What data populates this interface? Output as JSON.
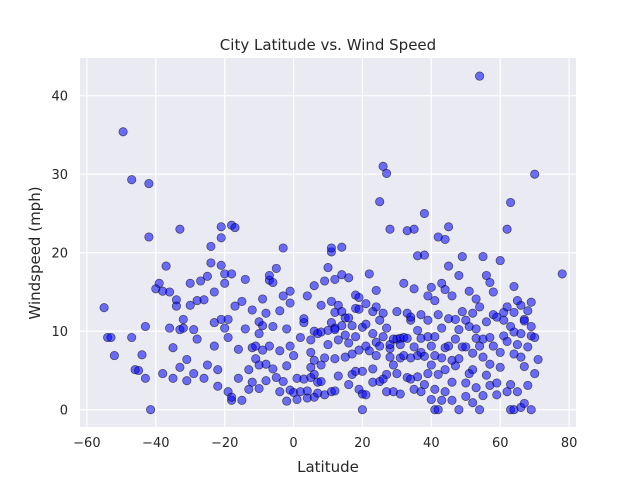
{
  "chart_data": {
    "type": "scatter",
    "title": "City Latitude vs. Wind Speed",
    "xlabel": "Latitude",
    "ylabel": "Windspeed (mph)",
    "xlim": [
      -62,
      82
    ],
    "ylim": [
      -2.2,
      44.8
    ],
    "xticks": [
      -60,
      -40,
      -20,
      0,
      20,
      40,
      60,
      80
    ],
    "yticks": [
      0,
      10,
      20,
      30,
      40
    ],
    "grid": true,
    "background": "#eaeaf2",
    "point_color": "#0000ff",
    "point_edge": "#000000",
    "points": [
      [
        -55,
        13
      ],
      [
        -54,
        9.2
      ],
      [
        -53,
        9.2
      ],
      [
        -52,
        6.9
      ],
      [
        -49.5,
        35.4
      ],
      [
        -47,
        29.3
      ],
      [
        -47,
        9.2
      ],
      [
        -46,
        5.1
      ],
      [
        -45,
        5
      ],
      [
        -44,
        7
      ],
      [
        -43,
        4
      ],
      [
        -43,
        10.6
      ],
      [
        -42,
        28.8
      ],
      [
        -42,
        22
      ],
      [
        -41.5,
        0
      ],
      [
        -40,
        15.4
      ],
      [
        -39,
        16.1
      ],
      [
        -38,
        4.6
      ],
      [
        -38,
        15.1
      ],
      [
        -37,
        18.3
      ],
      [
        -36,
        10.4
      ],
      [
        -36,
        15
      ],
      [
        -35,
        7.9
      ],
      [
        -35,
        4
      ],
      [
        -34,
        14
      ],
      [
        -34,
        13.2
      ],
      [
        -33,
        5.4
      ],
      [
        -33,
        23
      ],
      [
        -33,
        10.2
      ],
      [
        -32,
        11.5
      ],
      [
        -32,
        10.4
      ],
      [
        -31,
        3.7
      ],
      [
        -31,
        6.4
      ],
      [
        -30,
        16.1
      ],
      [
        -30,
        13.3
      ],
      [
        -29,
        4.6
      ],
      [
        -29,
        10.2
      ],
      [
        -28,
        13.9
      ],
      [
        -28,
        9
      ],
      [
        -27,
        16.4
      ],
      [
        -26,
        14
      ],
      [
        -26,
        4
      ],
      [
        -25,
        17
      ],
      [
        -25,
        5.7
      ],
      [
        -24,
        20.8
      ],
      [
        -24,
        18.7
      ],
      [
        -23,
        11.1
      ],
      [
        -23,
        15
      ],
      [
        -23,
        8.1
      ],
      [
        -22,
        3
      ],
      [
        -22,
        5.1
      ],
      [
        -21,
        21.9
      ],
      [
        -21,
        23.3
      ],
      [
        -21,
        18.4
      ],
      [
        -21,
        11.5
      ],
      [
        -20,
        10.4
      ],
      [
        -20,
        17.3
      ],
      [
        -20,
        16.1
      ],
      [
        -19,
        2.3
      ],
      [
        -19,
        9.2
      ],
      [
        -19,
        11.5
      ],
      [
        -18,
        1.2
      ],
      [
        -18,
        1.6
      ],
      [
        -18,
        23.5
      ],
      [
        -18,
        17.3
      ],
      [
        -17,
        23.2
      ],
      [
        -17,
        13.2
      ],
      [
        -16,
        4
      ],
      [
        -16,
        7.7
      ],
      [
        -15,
        13.8
      ],
      [
        -15,
        1.2
      ],
      [
        -14,
        10.3
      ],
      [
        -14,
        16.6
      ],
      [
        -13,
        5.1
      ],
      [
        -13,
        2.6
      ],
      [
        -12,
        3.5
      ],
      [
        -12,
        7.9
      ],
      [
        -12,
        12.7
      ],
      [
        -11,
        8.1
      ],
      [
        -11,
        6.5
      ],
      [
        -10,
        11.2
      ],
      [
        -10,
        5.7
      ],
      [
        -10,
        9.7
      ],
      [
        -10,
        2.7
      ],
      [
        -9,
        7.6
      ],
      [
        -9,
        14.1
      ],
      [
        -9,
        10.7
      ],
      [
        -8,
        3.7
      ],
      [
        -8,
        5.8
      ],
      [
        -8,
        12.3
      ],
      [
        -7,
        16.5
      ],
      [
        -7,
        17.1
      ],
      [
        -7,
        8.1
      ],
      [
        -6,
        5.2
      ],
      [
        -6,
        16.2
      ],
      [
        -6,
        10.6
      ],
      [
        -5,
        4.1
      ],
      [
        -5,
        18
      ],
      [
        -4,
        2.3
      ],
      [
        -4,
        12.6
      ],
      [
        -4,
        7.5
      ],
      [
        -3,
        20.6
      ],
      [
        -3,
        14.5
      ],
      [
        -3,
        3.6
      ],
      [
        -2,
        5.6
      ],
      [
        -2,
        1.1
      ],
      [
        -2,
        10.3
      ],
      [
        -1,
        2.5
      ],
      [
        -1,
        15.1
      ],
      [
        -1,
        13.6
      ],
      [
        -1,
        8.1
      ],
      [
        0,
        2.2
      ],
      [
        0,
        6.9
      ],
      [
        1,
        1.3
      ],
      [
        1,
        4
      ],
      [
        2,
        2.3
      ],
      [
        2,
        9.2
      ],
      [
        3,
        3.9
      ],
      [
        3,
        11.1
      ],
      [
        3,
        11.6
      ],
      [
        4,
        1.5
      ],
      [
        4,
        2.4
      ],
      [
        4,
        14.5
      ],
      [
        5,
        5.4
      ],
      [
        5,
        4.1
      ],
      [
        5,
        8.9
      ],
      [
        5,
        7.3
      ],
      [
        6,
        6.3
      ],
      [
        6,
        1.6
      ],
      [
        6,
        4.5
      ],
      [
        6,
        15.8
      ],
      [
        6,
        10
      ],
      [
        7,
        3.5
      ],
      [
        7,
        2.1
      ],
      [
        7,
        9.7
      ],
      [
        8,
        13.3
      ],
      [
        8,
        5.7
      ],
      [
        8,
        3.6
      ],
      [
        8,
        9.9
      ],
      [
        9,
        6.6
      ],
      [
        9,
        16.4
      ],
      [
        9,
        1.9
      ],
      [
        10,
        8.3
      ],
      [
        10,
        18.1
      ],
      [
        10,
        10.1
      ],
      [
        11,
        2.3
      ],
      [
        11,
        11.1
      ],
      [
        11,
        20.1
      ],
      [
        11,
        20.6
      ],
      [
        11,
        13.8
      ],
      [
        12,
        2.4
      ],
      [
        12,
        6.5
      ],
      [
        12,
        10.4
      ],
      [
        12,
        10.2
      ],
      [
        12,
        12.4
      ],
      [
        12,
        16.6
      ],
      [
        13,
        8.9
      ],
      [
        13,
        13.3
      ],
      [
        13,
        4.3
      ],
      [
        14,
        10.7
      ],
      [
        14,
        20.7
      ],
      [
        14,
        17.2
      ],
      [
        14,
        12.5
      ],
      [
        15,
        11.7
      ],
      [
        15,
        9.5
      ],
      [
        15,
        6.7
      ],
      [
        16,
        11.7
      ],
      [
        16,
        16.8
      ],
      [
        16,
        8.5
      ],
      [
        16,
        3.2
      ],
      [
        17,
        10.7
      ],
      [
        17,
        4.5
      ],
      [
        17,
        7.1
      ],
      [
        18,
        12.9
      ],
      [
        18,
        4.9
      ],
      [
        18,
        9.3
      ],
      [
        18,
        14.6
      ],
      [
        19,
        2.6
      ],
      [
        19,
        7.6
      ],
      [
        19,
        12.8
      ],
      [
        19,
        14.3
      ],
      [
        20,
        4.9
      ],
      [
        20,
        10.5
      ],
      [
        20,
        2
      ],
      [
        20,
        0
      ],
      [
        21,
        1.9
      ],
      [
        21,
        10.9
      ],
      [
        21,
        13.5
      ],
      [
        21,
        8.1
      ],
      [
        22,
        17.3
      ],
      [
        22,
        7.5
      ],
      [
        23,
        5.2
      ],
      [
        23,
        9.7
      ],
      [
        23,
        3.5
      ],
      [
        23,
        12.5
      ],
      [
        24,
        13.1
      ],
      [
        24,
        8.6
      ],
      [
        24,
        6.9
      ],
      [
        24,
        15.2
      ],
      [
        25,
        26.5
      ],
      [
        25,
        3.6
      ],
      [
        25,
        11.4
      ],
      [
        25,
        8.1
      ],
      [
        26,
        31
      ],
      [
        26,
        3.9
      ],
      [
        26,
        9.3
      ],
      [
        26,
        12.3
      ],
      [
        27,
        30.1
      ],
      [
        27,
        4.5
      ],
      [
        27,
        10.4
      ],
      [
        27,
        2.3
      ],
      [
        28,
        23
      ],
      [
        28,
        7.8
      ],
      [
        28,
        6.7
      ],
      [
        28,
        8.3
      ],
      [
        29,
        9
      ],
      [
        29,
        2.3
      ],
      [
        29,
        5.7
      ],
      [
        30,
        9
      ],
      [
        30,
        4.6
      ],
      [
        30,
        12.5
      ],
      [
        31,
        9.1
      ],
      [
        31,
        2
      ],
      [
        31,
        8.3
      ],
      [
        31,
        6.6
      ],
      [
        32,
        6.9
      ],
      [
        32,
        9.2
      ],
      [
        32,
        16.1
      ],
      [
        33,
        4.1
      ],
      [
        33,
        9.1
      ],
      [
        33,
        22.8
      ],
      [
        33,
        12.3
      ],
      [
        34,
        3.9
      ],
      [
        34,
        6.6
      ],
      [
        34,
        11.4
      ],
      [
        34,
        11.8
      ],
      [
        35,
        2.6
      ],
      [
        35,
        15.4
      ],
      [
        35,
        8
      ],
      [
        35,
        23
      ],
      [
        36,
        4.2
      ],
      [
        36,
        10.1
      ],
      [
        36,
        19.6
      ],
      [
        36,
        6.9
      ],
      [
        37,
        2.3
      ],
      [
        37,
        12.1
      ],
      [
        37,
        9.1
      ],
      [
        37,
        7.3
      ],
      [
        38,
        25
      ],
      [
        38,
        6.8
      ],
      [
        38,
        19.7
      ],
      [
        38,
        3.2
      ],
      [
        39,
        4.6
      ],
      [
        39,
        9.3
      ],
      [
        39,
        11.4
      ],
      [
        39,
        14.5
      ],
      [
        40,
        1.3
      ],
      [
        40,
        5.7
      ],
      [
        40,
        8.1
      ],
      [
        40,
        15.6
      ],
      [
        41,
        2.6
      ],
      [
        41,
        6.9
      ],
      [
        41,
        9.3
      ],
      [
        41,
        0
      ],
      [
        41,
        13.9
      ],
      [
        42,
        22
      ],
      [
        42,
        12.1
      ],
      [
        42,
        4.5
      ],
      [
        42,
        0
      ],
      [
        43,
        16.1
      ],
      [
        43,
        6.6
      ],
      [
        43,
        1.2
      ],
      [
        43,
        10.4
      ],
      [
        44,
        15.3
      ],
      [
        44,
        5.1
      ],
      [
        44,
        7.9
      ],
      [
        44,
        21.7
      ],
      [
        44,
        2.3
      ],
      [
        45,
        23.3
      ],
      [
        45,
        11.6
      ],
      [
        45,
        8.1
      ],
      [
        45,
        18.3
      ],
      [
        46,
        3.5
      ],
      [
        46,
        14.5
      ],
      [
        46,
        6.3
      ],
      [
        46,
        1.2
      ],
      [
        47,
        11.5
      ],
      [
        47,
        9
      ],
      [
        47,
        5.6
      ],
      [
        48,
        17.1
      ],
      [
        48,
        6.5
      ],
      [
        48,
        0
      ],
      [
        48,
        10.2
      ],
      [
        49,
        19.5
      ],
      [
        49,
        8
      ],
      [
        49,
        12.5
      ],
      [
        50,
        3.4
      ],
      [
        50,
        8
      ],
      [
        50,
        11.4
      ],
      [
        50,
        1.7
      ],
      [
        51,
        15.1
      ],
      [
        51,
        4.6
      ],
      [
        51,
        10.6
      ],
      [
        52,
        0.9
      ],
      [
        52,
        12.3
      ],
      [
        52,
        7.2
      ],
      [
        52,
        5.1
      ],
      [
        53,
        14.1
      ],
      [
        53,
        9.1
      ],
      [
        53,
        2.8
      ],
      [
        53,
        10.3
      ],
      [
        54,
        42.5
      ],
      [
        54,
        8.1
      ],
      [
        54,
        0
      ],
      [
        54,
        13.1
      ],
      [
        55,
        6.7
      ],
      [
        55,
        19.5
      ],
      [
        55,
        9
      ],
      [
        55,
        1.8
      ],
      [
        56,
        17.1
      ],
      [
        56,
        11.2
      ],
      [
        56,
        4.4
      ],
      [
        57,
        16.2
      ],
      [
        57,
        9.2
      ],
      [
        57,
        3.1
      ],
      [
        57,
        5.8
      ],
      [
        58,
        15
      ],
      [
        58,
        8.1
      ],
      [
        58,
        12.1
      ],
      [
        59,
        1.9
      ],
      [
        59,
        11.8
      ],
      [
        59,
        3.4
      ],
      [
        60,
        19
      ],
      [
        60,
        7.3
      ],
      [
        60,
        5.4
      ],
      [
        61,
        12.4
      ],
      [
        61,
        9.4
      ],
      [
        61,
        11.4
      ],
      [
        62,
        2.3
      ],
      [
        62,
        13.1
      ],
      [
        62,
        23
      ],
      [
        62,
        8.7
      ],
      [
        63,
        3.2
      ],
      [
        63,
        0
      ],
      [
        63,
        10.6
      ],
      [
        63,
        26.4
      ],
      [
        64,
        15.7
      ],
      [
        64,
        12.4
      ],
      [
        64,
        9.9
      ],
      [
        64,
        7.1
      ],
      [
        64,
        0
      ],
      [
        65,
        13.9
      ],
      [
        65,
        2.3
      ],
      [
        65,
        8.3
      ],
      [
        66,
        9.7
      ],
      [
        66,
        13.3
      ],
      [
        66,
        6.7
      ],
      [
        66,
        0.3
      ],
      [
        67,
        11.5
      ],
      [
        67,
        11.3
      ],
      [
        67,
        5.5
      ],
      [
        67,
        0.8
      ],
      [
        68,
        8
      ],
      [
        68,
        3.1
      ],
      [
        68,
        12.6
      ],
      [
        69,
        0
      ],
      [
        69,
        9.4
      ],
      [
        69,
        13.7
      ],
      [
        69,
        10.6
      ],
      [
        70,
        9.2
      ],
      [
        70,
        4.6
      ],
      [
        70,
        30
      ],
      [
        71,
        6.4
      ],
      [
        78,
        17.3
      ]
    ]
  }
}
